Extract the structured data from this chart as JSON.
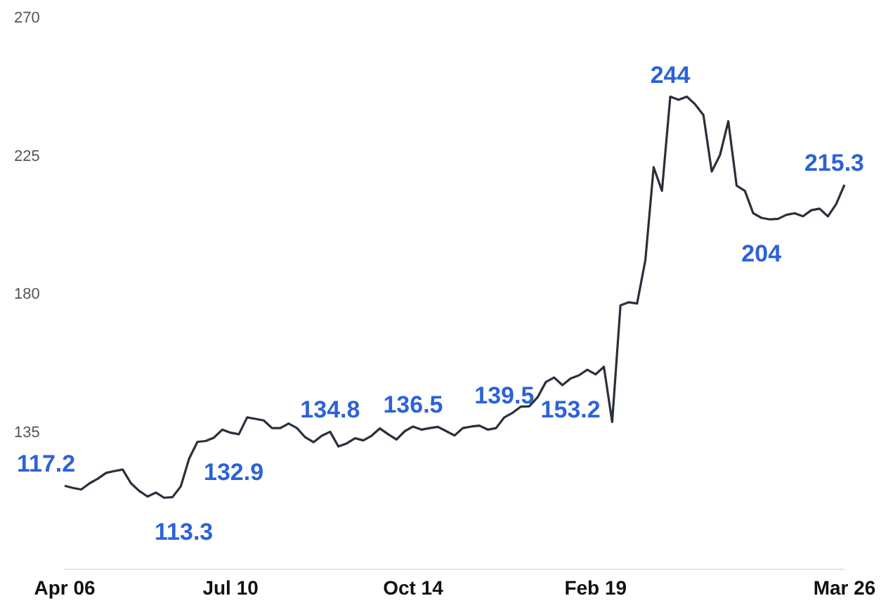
{
  "chart_data": {
    "type": "line",
    "categories": [
      "Apr 06",
      null,
      null,
      null,
      null,
      null,
      null,
      null,
      null,
      null,
      null,
      null,
      null,
      null,
      null,
      null,
      null,
      null,
      null,
      null,
      "Jul 10",
      null,
      null,
      null,
      null,
      null,
      null,
      null,
      null,
      null,
      null,
      null,
      null,
      null,
      null,
      null,
      null,
      null,
      null,
      null,
      null,
      null,
      "Oct 14",
      null,
      null,
      null,
      null,
      null,
      null,
      null,
      null,
      null,
      null,
      null,
      null,
      null,
      null,
      null,
      null,
      null,
      null,
      null,
      null,
      null,
      "Feb 19",
      null,
      null,
      null,
      null,
      null,
      null,
      null,
      null,
      null,
      null,
      null,
      null,
      null,
      null,
      null,
      null,
      null,
      null,
      null,
      null,
      null,
      null,
      null,
      null,
      null,
      null,
      null,
      null,
      null,
      "Mar 26"
    ],
    "values": [
      117.2,
      116.5,
      116,
      118,
      119.5,
      121.4,
      122,
      122.5,
      118,
      115.5,
      113.7,
      115,
      113.3,
      113.5,
      117,
      126,
      131.5,
      131.8,
      132.9,
      135.5,
      134.5,
      134,
      139.5,
      139,
      138.5,
      136,
      136,
      137.5,
      136,
      133,
      131.4,
      133.5,
      134.8,
      130,
      131,
      132.7,
      132,
      133.5,
      135.9,
      134,
      132.3,
      135,
      136.5,
      135.5,
      136,
      136.4,
      135,
      133.6,
      136,
      136.5,
      136.8,
      135.5,
      136,
      139.5,
      141,
      143,
      143.1,
      146,
      151,
      152.5,
      150,
      152.2,
      153.2,
      155,
      153.5,
      156,
      138,
      176,
      177,
      176.6,
      190.7,
      221,
      213.3,
      244,
      243,
      244,
      241.5,
      238,
      219.6,
      225,
      236,
      215,
      213.3,
      206,
      204.5,
      204,
      204.2,
      205.5,
      206,
      205,
      207,
      207.5,
      205,
      209,
      215.3
    ],
    "value_labels": [
      "117.2",
      null,
      null,
      null,
      null,
      null,
      null,
      null,
      null,
      null,
      null,
      null,
      "113.3",
      null,
      null,
      null,
      null,
      null,
      "132.9",
      null,
      null,
      null,
      null,
      null,
      null,
      null,
      null,
      null,
      null,
      null,
      null,
      null,
      "134.8",
      null,
      null,
      null,
      null,
      null,
      null,
      null,
      null,
      null,
      "136.5",
      null,
      null,
      null,
      null,
      null,
      null,
      null,
      null,
      null,
      null,
      "139.5",
      null,
      null,
      null,
      null,
      null,
      null,
      null,
      null,
      "153.2",
      null,
      null,
      null,
      null,
      null,
      null,
      null,
      null,
      null,
      null,
      "244",
      null,
      null,
      null,
      null,
      null,
      null,
      null,
      null,
      null,
      null,
      null,
      "204",
      null,
      null,
      null,
      null,
      null,
      null,
      null,
      null,
      "215.3"
    ],
    "color": "#2a2f3a",
    "ylim": [
      90,
      270
    ],
    "yticks": [
      135,
      180,
      225,
      270
    ],
    "marker": "none"
  }
}
